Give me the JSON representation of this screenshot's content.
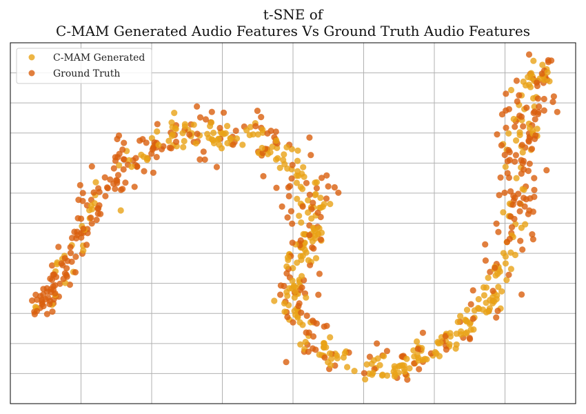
{
  "chart_data": {
    "type": "scatter",
    "title_line1": "t-SNE of",
    "title_line2": "C-MAM Generated Audio Features Vs Ground Truth Audio Features",
    "xlabel": "",
    "ylabel": "",
    "xlim": [
      -80,
      80
    ],
    "ylim": [
      -60,
      60
    ],
    "grid": true,
    "legend_position": "top-left",
    "series": [
      {
        "name": "C-MAM Generated",
        "color": "#E8A317"
      },
      {
        "name": "Ground Truth",
        "color": "#D95F0E"
      }
    ]
  }
}
